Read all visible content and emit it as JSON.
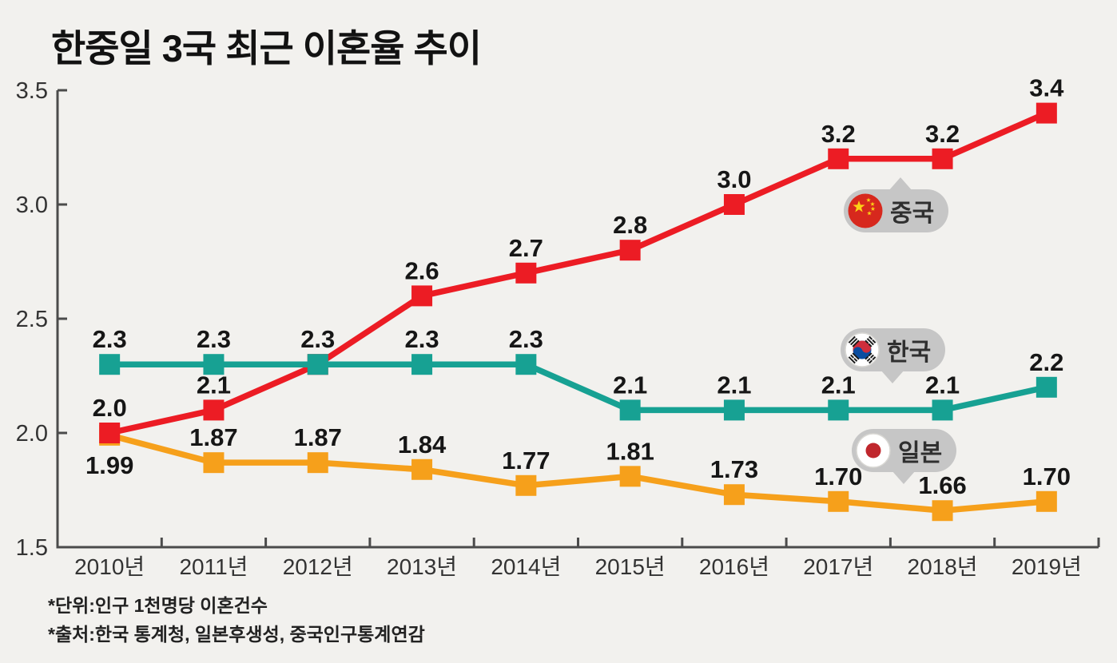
{
  "title": "한중일 3국 최근 이혼율 추이",
  "footnotes": [
    "*단위:인구 1천명당 이혼건수",
    "*출처:한국 통계청, 일본후생성, 중국인구통계연감"
  ],
  "colors": {
    "background": "#f2f1ee",
    "axis": "#4b4b4b",
    "tick_text": "#333333",
    "data_label_text": "#161616",
    "callout_bubble": "#c6c6c6",
    "china_red": "#ec1c24",
    "korea_teal": "#17a193",
    "japan_orange": "#f6a01b"
  },
  "chart_data": {
    "type": "line",
    "title": "한중일 3국 최근 이혼율 추이",
    "x": [
      "2010년",
      "2011년",
      "2012년",
      "2013년",
      "2014년",
      "2015년",
      "2016년",
      "2017년",
      "2018년",
      "2019년"
    ],
    "xlabel": "",
    "ylabel": "",
    "ylim": [
      1.5,
      3.5
    ],
    "yticks": [
      1.5,
      2.0,
      2.5,
      3.0,
      3.5
    ],
    "ytick_labels": [
      "1.5",
      "2.0",
      "2.5",
      "3.0",
      "3.5"
    ],
    "grid": false,
    "legend_position": "inline-callouts",
    "marker": "square",
    "series": [
      {
        "name": "일본",
        "key": "japan",
        "color": "#f6a01b",
        "values": [
          1.99,
          1.87,
          1.87,
          1.84,
          1.77,
          1.81,
          1.73,
          1.7,
          1.66,
          1.7
        ],
        "labels": [
          "1.99",
          "1.87",
          "1.87",
          "1.84",
          "1.77",
          "1.81",
          "1.73",
          "1.70",
          "1.66",
          "1.70"
        ],
        "label_below_indices": [
          0
        ]
      },
      {
        "name": "중국",
        "key": "china",
        "color": "#ec1c24",
        "values": [
          2.0,
          2.1,
          2.3,
          2.6,
          2.7,
          2.8,
          3.0,
          3.2,
          3.2,
          3.4
        ],
        "labels": [
          "2.0",
          "2.1",
          "",
          "2.6",
          "2.7",
          "2.8",
          "3.0",
          "3.2",
          "3.2",
          "3.4"
        ],
        "label_below_indices": []
      },
      {
        "name": "한국",
        "key": "korea",
        "color": "#17a193",
        "values": [
          2.3,
          2.3,
          2.3,
          2.3,
          2.3,
          2.1,
          2.1,
          2.1,
          2.1,
          2.2
        ],
        "labels": [
          "2.3",
          "2.3",
          "2.3",
          "2.3",
          "2.3",
          "2.1",
          "2.1",
          "2.1",
          "2.1",
          "2.2"
        ],
        "label_below_indices": []
      }
    ],
    "callouts": [
      {
        "key": "china",
        "label": "중국",
        "flag": "china",
        "tail": "up"
      },
      {
        "key": "korea",
        "label": "한국",
        "flag": "korea",
        "tail": "down"
      },
      {
        "key": "japan",
        "label": "일본",
        "flag": "japan",
        "tail": "down"
      }
    ]
  }
}
